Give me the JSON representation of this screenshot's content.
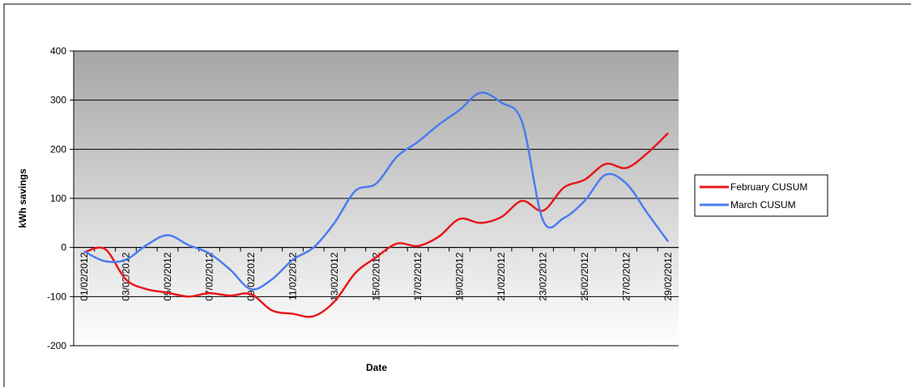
{
  "chart_data": {
    "type": "line",
    "x_label": "Date",
    "y_label": "kWh savings",
    "categories": [
      "01/02/2012",
      null,
      "03/02/2012",
      null,
      "05/02/2012",
      null,
      "07/02/2012",
      null,
      "09/02/2012",
      null,
      "11/02/2012",
      null,
      "13/02/2012",
      null,
      "15/02/2012",
      null,
      "17/02/2012",
      null,
      "19/02/2012",
      null,
      "21/02/2012",
      null,
      "23/02/2012",
      null,
      "25/02/2012",
      null,
      "27/02/2012",
      null,
      "29/02/2012"
    ],
    "series": [
      {
        "name": "February CUSUM",
        "color": "#e8171b",
        "values": [
          -10,
          -3,
          -65,
          -85,
          -92,
          -100,
          -93,
          -98,
          -95,
          -128,
          -135,
          -140,
          -110,
          -52,
          -20,
          8,
          3,
          22,
          58,
          50,
          62,
          95,
          75,
          122,
          138,
          170,
          162,
          192,
          233
        ]
      },
      {
        "name": "March CUSUM",
        "color": "#4a7cf0",
        "values": [
          -8,
          -28,
          -25,
          5,
          25,
          5,
          -12,
          -45,
          -85,
          -65,
          -25,
          0,
          50,
          115,
          130,
          185,
          215,
          250,
          280,
          315,
          295,
          255,
          55,
          60,
          95,
          148,
          130,
          70,
          12
        ]
      }
    ],
    "ylim": [
      -200,
      400
    ],
    "yticks": [
      -200,
      -100,
      0,
      100,
      200,
      300,
      400
    ],
    "grid": true,
    "legend": "right"
  }
}
